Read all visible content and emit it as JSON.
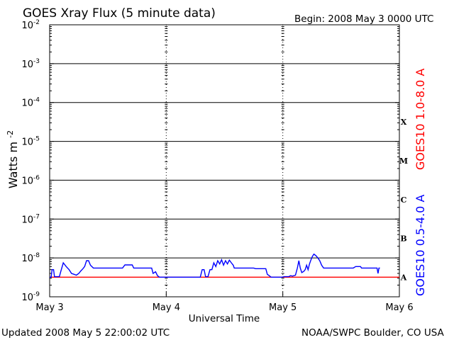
{
  "header": {
    "title": "GOES Xray Flux (5 minute data)",
    "begin": "Begin:  2008 May 3 0000 UTC"
  },
  "footer": {
    "updated": "Updated 2008 May  5 22:00:02 UTC",
    "source": "NOAA/SWPC Boulder, CO USA"
  },
  "chart_data": {
    "type": "line",
    "title": "GOES Xray Flux (5 minute data)",
    "xlabel": "Universal Time",
    "ylabel": "Watts m",
    "ylabel_superscript": "-2",
    "yscale": "log",
    "ylim": [
      1e-09,
      0.01
    ],
    "xlim": [
      0,
      72
    ],
    "x_units": "hours since 2008 May 3 0000 UTC",
    "x_ticks": [
      {
        "x": 0,
        "label": "May 3"
      },
      {
        "x": 24,
        "label": "May 4"
      },
      {
        "x": 48,
        "label": "May 5"
      },
      {
        "x": 72,
        "label": "May 6"
      }
    ],
    "y_ticks": [
      {
        "exp": -2,
        "label": "-2"
      },
      {
        "exp": -3,
        "label": "-3"
      },
      {
        "exp": -4,
        "label": "-4"
      },
      {
        "exp": -5,
        "label": "-5"
      },
      {
        "exp": -6,
        "label": "-6"
      },
      {
        "exp": -7,
        "label": "-7"
      },
      {
        "exp": -8,
        "label": "-8"
      },
      {
        "exp": -9,
        "label": "-9"
      }
    ],
    "y_tick_base": "10",
    "flare_classes": [
      {
        "label": "X",
        "exp": -4.5
      },
      {
        "label": "M",
        "exp": -5.5
      },
      {
        "label": "C",
        "exp": -6.5
      },
      {
        "label": "B",
        "exp": -7.5
      },
      {
        "label": "A",
        "exp": -8.5
      }
    ],
    "grid": "horizontal lines at each decade, dotted vertical day markers",
    "series": [
      {
        "name": "GOES10 1.0-8.0 A",
        "color": "#ff0000",
        "points": [
          [
            0,
            3.2e-09
          ],
          [
            72,
            3.2e-09
          ]
        ]
      },
      {
        "name": "GOES10 0.5-4.0 A",
        "color": "#0000ff",
        "points": [
          [
            0,
            3.2e-09
          ],
          [
            0.3,
            3.2e-09
          ],
          [
            0.5,
            5e-09
          ],
          [
            0.8,
            5e-09
          ],
          [
            1.0,
            3.3e-09
          ],
          [
            2.0,
            3.3e-09
          ],
          [
            2.3,
            4.5e-09
          ],
          [
            2.8,
            7.5e-09
          ],
          [
            3.4,
            6e-09
          ],
          [
            4.0,
            5e-09
          ],
          [
            4.5,
            4e-09
          ],
          [
            5.0,
            3.8e-09
          ],
          [
            5.5,
            3.6e-09
          ],
          [
            6.0,
            4e-09
          ],
          [
            6.4,
            4.6e-09
          ],
          [
            6.8,
            5.2e-09
          ],
          [
            7.2,
            6e-09
          ],
          [
            7.6,
            8.5e-09
          ],
          [
            8.0,
            8.5e-09
          ],
          [
            8.4,
            6.5e-09
          ],
          [
            9.0,
            5.5e-09
          ],
          [
            10.0,
            5.5e-09
          ],
          [
            11.0,
            5.5e-09
          ],
          [
            12.5,
            5.5e-09
          ],
          [
            14.0,
            5.5e-09
          ],
          [
            15.0,
            5.5e-09
          ],
          [
            15.5,
            6.6e-09
          ],
          [
            17.0,
            6.6e-09
          ],
          [
            17.3,
            5.5e-09
          ],
          [
            19.0,
            5.5e-09
          ],
          [
            20.0,
            5.5e-09
          ],
          [
            21.0,
            5.5e-09
          ],
          [
            21.3,
            4e-09
          ],
          [
            21.8,
            4.4e-09
          ],
          [
            22.2,
            3.5e-09
          ],
          [
            22.6,
            3.2e-09
          ],
          [
            23.5,
            3.2e-09
          ],
          [
            31.0,
            3.2e-09
          ],
          [
            31.4,
            5e-09
          ],
          [
            31.8,
            5e-09
          ],
          [
            32.1,
            3.3e-09
          ],
          [
            32.6,
            3.3e-09
          ],
          [
            33.0,
            5e-09
          ],
          [
            33.4,
            5e-09
          ],
          [
            33.8,
            7.5e-09
          ],
          [
            34.2,
            6e-09
          ],
          [
            34.6,
            8.5e-09
          ],
          [
            35.0,
            7e-09
          ],
          [
            35.4,
            9e-09
          ],
          [
            35.8,
            6.5e-09
          ],
          [
            36.2,
            8.5e-09
          ],
          [
            36.6,
            7e-09
          ],
          [
            37.0,
            8.8e-09
          ],
          [
            37.4,
            7.5e-09
          ],
          [
            37.8,
            6.5e-09
          ],
          [
            38.0,
            5.5e-09
          ],
          [
            40.0,
            5.5e-09
          ],
          [
            42.0,
            5.5e-09
          ],
          [
            42.4,
            5.3e-09
          ],
          [
            44.5,
            5.3e-09
          ],
          [
            44.8,
            3.8e-09
          ],
          [
            45.2,
            3.5e-09
          ],
          [
            45.6,
            3.2e-09
          ],
          [
            47.8,
            3.2e-09
          ],
          [
            48.3,
            3.3e-09
          ],
          [
            49.2,
            3.3e-09
          ],
          [
            49.6,
            3.5e-09
          ],
          [
            50.0,
            3.4e-09
          ],
          [
            50.6,
            3.6e-09
          ],
          [
            51.0,
            5.5e-09
          ],
          [
            51.3,
            8.5e-09
          ],
          [
            51.6,
            5.5e-09
          ],
          [
            51.9,
            4.2e-09
          ],
          [
            52.3,
            4.5e-09
          ],
          [
            52.6,
            5e-09
          ],
          [
            52.9,
            6.5e-09
          ],
          [
            53.2,
            5e-09
          ],
          [
            53.5,
            7e-09
          ],
          [
            53.8,
            9e-09
          ],
          [
            54.1,
            1.1e-08
          ],
          [
            54.4,
            1.25e-08
          ],
          [
            54.8,
            1.15e-08
          ],
          [
            55.2,
            1e-08
          ],
          [
            55.6,
            8.5e-09
          ],
          [
            56.0,
            6.5e-09
          ],
          [
            56.4,
            5.5e-09
          ],
          [
            58.0,
            5.5e-09
          ],
          [
            60.0,
            5.5e-09
          ],
          [
            62.5,
            5.5e-09
          ],
          [
            63.0,
            6e-09
          ],
          [
            64.0,
            6e-09
          ],
          [
            64.2,
            5.5e-09
          ],
          [
            66.0,
            5.5e-09
          ],
          [
            67.4,
            5.5e-09
          ],
          [
            67.6,
            4e-09
          ],
          [
            67.8,
            5.5e-09
          ],
          [
            68.0,
            5.5e-09
          ]
        ]
      }
    ]
  }
}
